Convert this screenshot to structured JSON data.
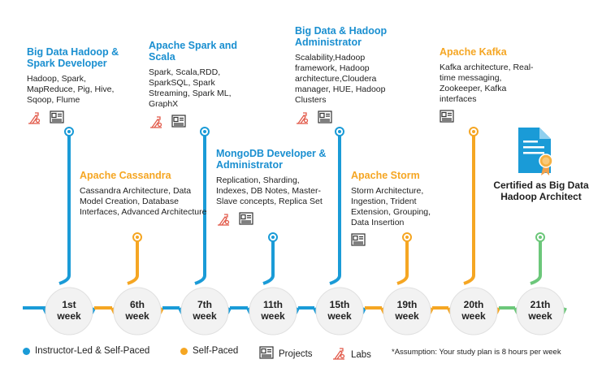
{
  "colors": {
    "blue": "#1a9bd7",
    "orange": "#f5a623",
    "green": "#6cc77a",
    "title_blue": "#1a8fd0",
    "title_orange": "#f5a623",
    "red_icon": "#e25a4a"
  },
  "courses": [
    {
      "title": "Big Data Hadoop & Spark Developer",
      "desc": "Hadoop, Spark, MapReduce, Pig, Hive, Sqoop, Flume",
      "color": "blue",
      "labs": true,
      "projects": true
    },
    {
      "title": "Apache Cassandra",
      "desc": "Cassandra Architecture, Data Model Creation, Database Interfaces, Advanced Architecture",
      "color": "orange",
      "labs": false,
      "projects": false
    },
    {
      "title": "Apache Spark and Scala",
      "desc": "Spark, Scala,RDD, SparkSQL, Spark Streaming, Spark ML, GraphX",
      "color": "blue",
      "labs": true,
      "projects": true
    },
    {
      "title": "MongoDB Developer & Administrator",
      "desc": "Replication, Sharding, Indexes, DB Notes, Master-Slave concepts, Replica Set",
      "color": "blue",
      "labs": true,
      "projects": true
    },
    {
      "title": "Big Data & Hadoop Administrator",
      "desc": "Scalability,Hadoop framework, Hadoop architecture,Cloudera manager, HUE, Hadoop Clusters",
      "color": "blue",
      "labs": true,
      "projects": true
    },
    {
      "title": "Apache Storm",
      "desc": "Storm Architecture, Ingestion, Trident Extension, Grouping, Data Insertion",
      "color": "orange",
      "labs": false,
      "projects": true
    },
    {
      "title": "Apache Kafka",
      "desc": "Kafka architecture, Real-time messaging, Zookeeper, Kafka interfaces",
      "color": "orange",
      "labs": false,
      "projects": true
    }
  ],
  "certificate": {
    "text": "Certified as Big Data Hadoop Architect",
    "icon": "certificate-icon"
  },
  "weeks": [
    {
      "num": "1st",
      "unit": "week"
    },
    {
      "num": "6th",
      "unit": "week"
    },
    {
      "num": "7th",
      "unit": "week"
    },
    {
      "num": "11th",
      "unit": "week"
    },
    {
      "num": "15th",
      "unit": "week"
    },
    {
      "num": "19th",
      "unit": "week"
    },
    {
      "num": "20th",
      "unit": "week"
    },
    {
      "num": "21th",
      "unit": "week"
    }
  ],
  "legend": {
    "instructor": "Instructor-Led & Self-Paced",
    "self": "Self-Paced",
    "projects": "Projects",
    "labs": "Labs",
    "note": "*Assumption: Your study plan is 8 hours per week"
  }
}
